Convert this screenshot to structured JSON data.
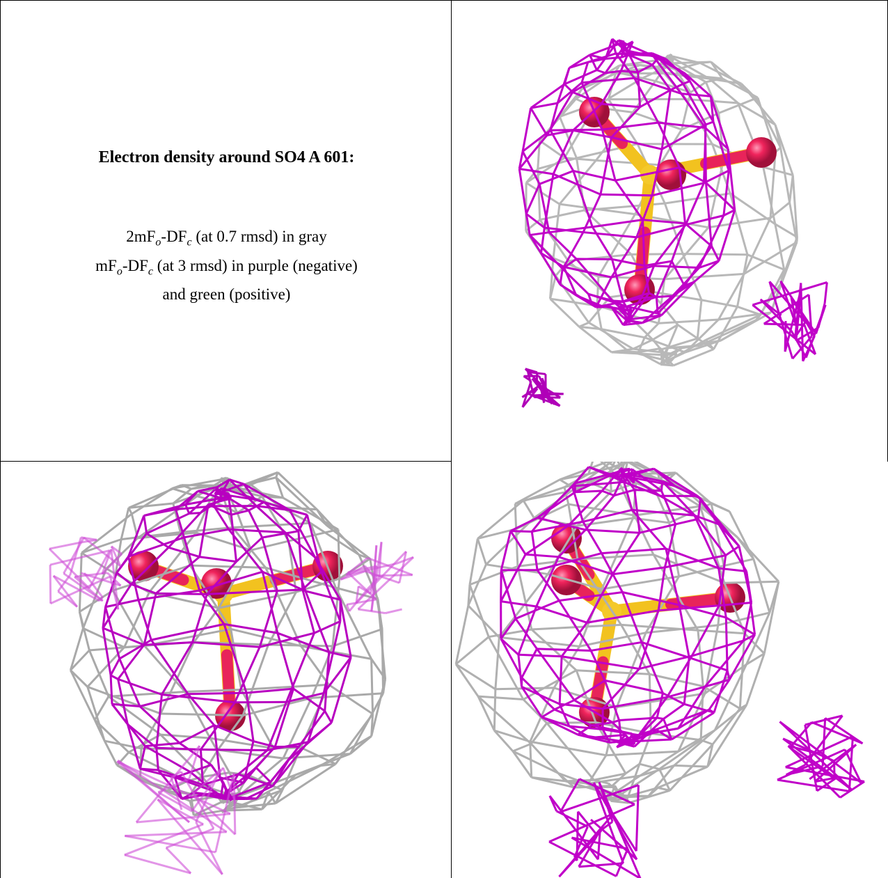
{
  "title": "Electron density around SO4 A 601:",
  "legend": {
    "lines": [
      [
        "2mF",
        "o",
        "-DF",
        "c",
        " (at 0.7 rmsd) in gray"
      ],
      [
        "mF",
        "o",
        "-DF",
        "c",
        " (at 3 rmsd) in purple (negative)"
      ],
      [
        "and green (positive)"
      ]
    ]
  }
}
